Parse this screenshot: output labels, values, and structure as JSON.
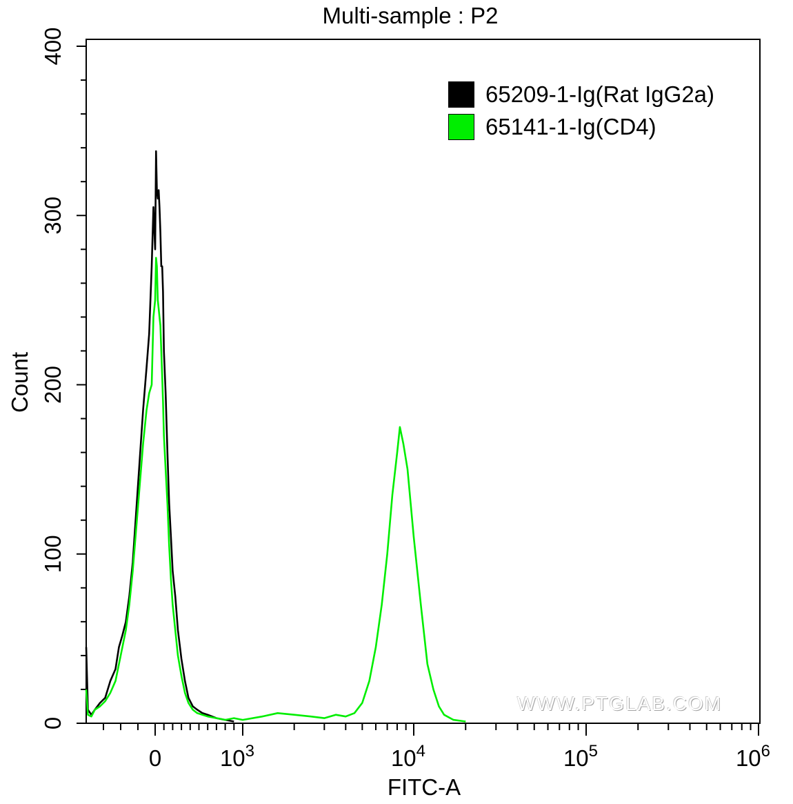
{
  "chart_data": {
    "type": "line",
    "title": "Multi-sample : P2",
    "xlabel": "FITC-A",
    "ylabel": "Count",
    "x_scale": "biexponential",
    "xlim": [
      -400,
      1000000
    ],
    "ylim": [
      0,
      400
    ],
    "y_ticks": [
      0,
      100,
      200,
      300,
      400
    ],
    "x_ticks": [
      {
        "value": 0,
        "base": "0",
        "exp": ""
      },
      {
        "value": 1000,
        "base": "10",
        "exp": "3"
      },
      {
        "value": 10000,
        "base": "10",
        "exp": "4"
      },
      {
        "value": 100000,
        "base": "10",
        "exp": "5"
      },
      {
        "value": 1000000,
        "base": "10",
        "exp": "6"
      }
    ],
    "grid": false,
    "legend_position": "top-right",
    "series": [
      {
        "name": "65209-1-Ig(Rat IgG2a)",
        "color": "#000000",
        "x": [
          -400,
          -390,
          -370,
          -350,
          -320,
          -290,
          -260,
          -230,
          -210,
          -190,
          -170,
          -150,
          -130,
          -110,
          -90,
          -70,
          -50,
          -35,
          -20,
          -10,
          0,
          10,
          20,
          30,
          40,
          50,
          60,
          70,
          80,
          90,
          100,
          120,
          140,
          160,
          180,
          200,
          230,
          260,
          300,
          340,
          380,
          430,
          480,
          540,
          600,
          700,
          800,
          900
        ],
        "y": [
          45,
          8,
          5,
          8,
          12,
          15,
          25,
          32,
          45,
          52,
          60,
          75,
          95,
          125,
          155,
          185,
          210,
          230,
          270,
          305,
          280,
          338,
          315,
          310,
          315,
          305,
          290,
          270,
          270,
          255,
          220,
          195,
          160,
          130,
          110,
          90,
          75,
          55,
          38,
          25,
          15,
          10,
          8,
          6,
          5,
          3,
          2,
          1
        ]
      },
      {
        "name": "65141-1-Ig(CD4)",
        "color": "#00ee00",
        "x": [
          -400,
          -390,
          -370,
          -350,
          -320,
          -290,
          -260,
          -230,
          -210,
          -190,
          -170,
          -150,
          -130,
          -110,
          -90,
          -70,
          -50,
          -35,
          -20,
          -10,
          0,
          10,
          20,
          30,
          40,
          50,
          60,
          70,
          80,
          90,
          100,
          120,
          140,
          160,
          180,
          200,
          230,
          260,
          300,
          340,
          380,
          430,
          480,
          540,
          600,
          700,
          800,
          900,
          1000,
          1300,
          1600,
          2000,
          2500,
          3000,
          3500,
          4000,
          4500,
          5000,
          5500,
          6000,
          6500,
          7000,
          7500,
          8000,
          8300,
          8700,
          9200,
          10000,
          11000,
          12000,
          13000,
          14000,
          15000,
          17000,
          20000
        ],
        "y": [
          20,
          5,
          4,
          8,
          10,
          13,
          18,
          25,
          35,
          45,
          55,
          70,
          90,
          115,
          140,
          165,
          185,
          195,
          200,
          240,
          250,
          275,
          270,
          250,
          245,
          240,
          235,
          220,
          205,
          190,
          170,
          150,
          130,
          105,
          85,
          70,
          55,
          40,
          28,
          18,
          12,
          8,
          6,
          5,
          4,
          3,
          2,
          3,
          2,
          4,
          6,
          5,
          4,
          3,
          5,
          4,
          6,
          12,
          25,
          45,
          70,
          100,
          135,
          160,
          175,
          165,
          150,
          110,
          70,
          35,
          20,
          10,
          5,
          2,
          1
        ]
      }
    ]
  },
  "watermark": "WWW.PTGLAB.COM"
}
